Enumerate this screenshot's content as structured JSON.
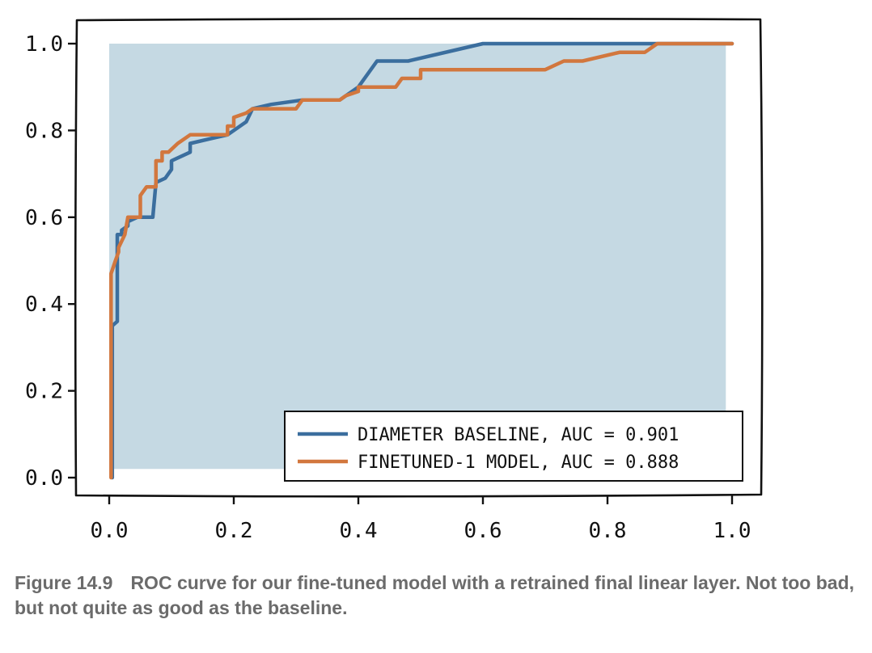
{
  "chart_data": {
    "type": "line",
    "title": "",
    "xlabel": "",
    "ylabel": "",
    "xlim": [
      0.0,
      1.0
    ],
    "ylim": [
      0.0,
      1.0
    ],
    "x_ticks": [
      "0.0",
      "0.2",
      "0.4",
      "0.6",
      "0.8",
      "1.0"
    ],
    "y_ticks": [
      "0.0",
      "0.2",
      "0.4",
      "0.6",
      "0.8",
      "1.0"
    ],
    "grid": false,
    "legend_position": "bottom-right",
    "filled_area_color": "#c5d9e3",
    "series": [
      {
        "name": "DIAMETER BASELINE, AUC = 0.901",
        "color": "#3b6e9e",
        "x": [
          0.005,
          0.005,
          0.013,
          0.013,
          0.02,
          0.02,
          0.03,
          0.03,
          0.045,
          0.07,
          0.075,
          0.09,
          0.1,
          0.1,
          0.13,
          0.13,
          0.16,
          0.19,
          0.22,
          0.23,
          0.26,
          0.31,
          0.37,
          0.4,
          0.43,
          0.48,
          0.6,
          0.7,
          0.87,
          1.0
        ],
        "y": [
          0.0,
          0.35,
          0.36,
          0.56,
          0.56,
          0.57,
          0.58,
          0.59,
          0.6,
          0.6,
          0.68,
          0.69,
          0.71,
          0.73,
          0.75,
          0.77,
          0.78,
          0.79,
          0.82,
          0.85,
          0.86,
          0.87,
          0.87,
          0.9,
          0.96,
          0.96,
          1.0,
          1.0,
          1.0,
          1.0
        ]
      },
      {
        "name": "FINETUNED-1 MODEL, AUC = 0.888",
        "color": "#d2773e",
        "x": [
          0.003,
          0.003,
          0.01,
          0.015,
          0.015,
          0.025,
          0.03,
          0.05,
          0.05,
          0.06,
          0.075,
          0.075,
          0.085,
          0.085,
          0.095,
          0.11,
          0.13,
          0.19,
          0.19,
          0.2,
          0.2,
          0.22,
          0.23,
          0.3,
          0.31,
          0.37,
          0.38,
          0.4,
          0.4,
          0.46,
          0.47,
          0.5,
          0.5,
          0.7,
          0.73,
          0.75,
          0.76,
          0.82,
          0.86,
          0.88,
          1.0
        ],
        "y": [
          0.0,
          0.47,
          0.5,
          0.52,
          0.53,
          0.56,
          0.6,
          0.6,
          0.65,
          0.67,
          0.67,
          0.73,
          0.73,
          0.75,
          0.75,
          0.77,
          0.79,
          0.79,
          0.81,
          0.81,
          0.83,
          0.84,
          0.85,
          0.85,
          0.87,
          0.87,
          0.88,
          0.89,
          0.9,
          0.9,
          0.92,
          0.92,
          0.94,
          0.94,
          0.96,
          0.96,
          0.96,
          0.98,
          0.98,
          1.0,
          1.0
        ]
      }
    ]
  },
  "caption": {
    "figure_number": "Figure 14.9",
    "text": "ROC curve for our fine-tuned model with a retrained final linear layer. Not too bad, but not quite as good as the baseline."
  }
}
